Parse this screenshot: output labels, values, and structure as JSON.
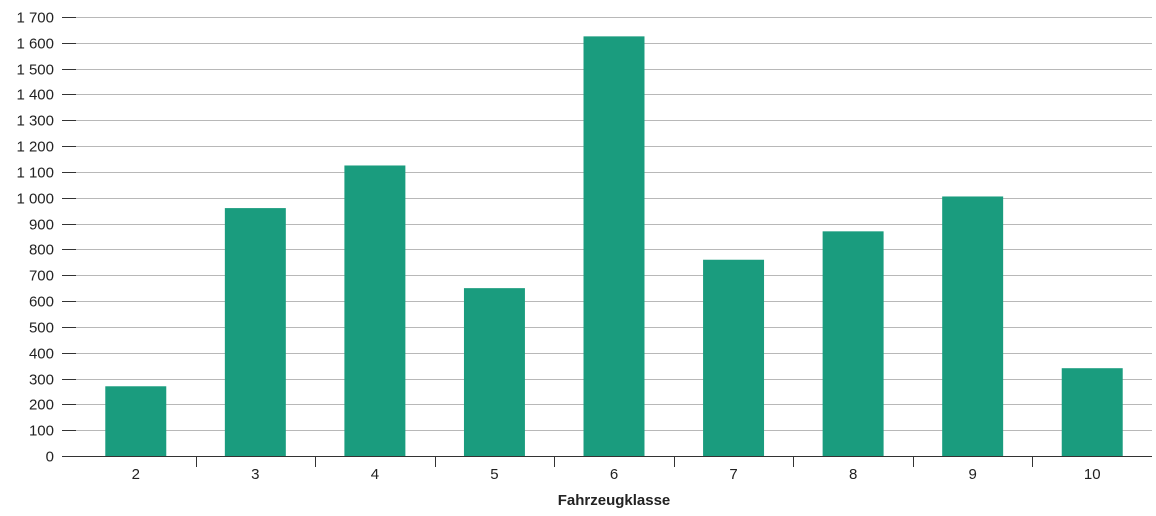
{
  "chart_data": {
    "type": "bar",
    "categories": [
      "2",
      "3",
      "4",
      "5",
      "6",
      "7",
      "8",
      "9",
      "10"
    ],
    "values": [
      270,
      960,
      1125,
      650,
      1625,
      760,
      870,
      1005,
      340
    ],
    "title": "",
    "xlabel": "Fahrzeugklasse",
    "ylabel": "",
    "ylim": [
      0,
      1700
    ],
    "y_ticks": [
      0,
      100,
      200,
      300,
      400,
      500,
      600,
      700,
      800,
      900,
      1000,
      1100,
      1200,
      1300,
      1400,
      1500,
      1600,
      1700
    ],
    "y_tick_labels": [
      "0",
      "100",
      "200",
      "300",
      "400",
      "500",
      "600",
      "700",
      "800",
      "900",
      "1 000",
      "1 100",
      "1 200",
      "1 300",
      "1 400",
      "1 500",
      "1 600",
      "1 700"
    ],
    "grid": true,
    "legend": "none",
    "bar_color": "#1a9c7e",
    "grid_color": "#b8b8b8",
    "axis_color": "#333333"
  }
}
